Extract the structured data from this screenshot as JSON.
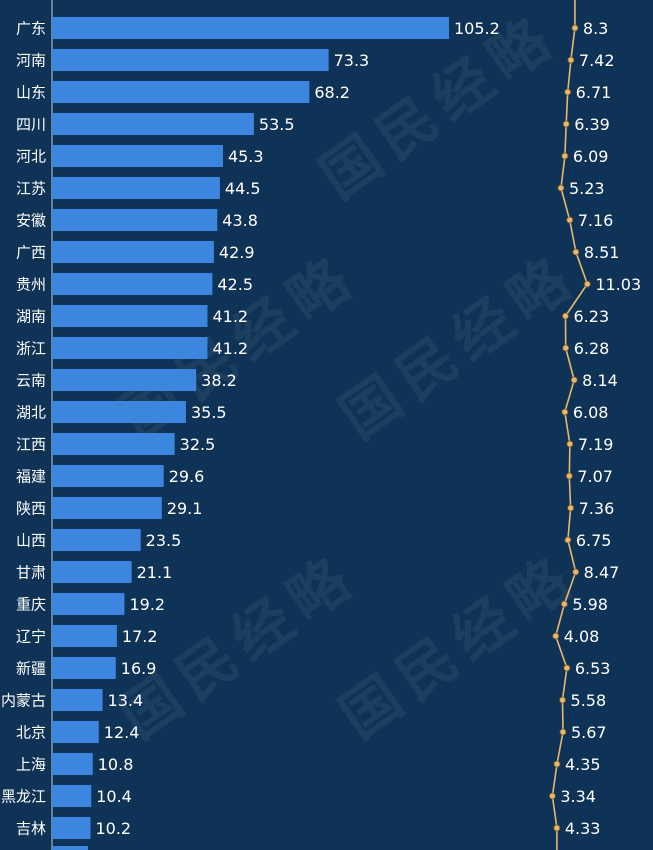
{
  "watermark": "国民经略",
  "colors": {
    "background": "#0f3356",
    "bar": "#3c86e0",
    "line": "#e8b86d",
    "text": "#ffffff",
    "axis": "#c8d2dc"
  },
  "chart_data": {
    "type": "bar",
    "categories": [
      "广东",
      "河南",
      "山东",
      "四川",
      "河北",
      "江苏",
      "安徽",
      "广西",
      "贵州",
      "湖南",
      "浙江",
      "云南",
      "湖北",
      "江西",
      "福建",
      "陕西",
      "山西",
      "甘肃",
      "重庆",
      "辽宁",
      "新疆",
      "内蒙古",
      "北京",
      "上海",
      "黑龙江",
      "吉林"
    ],
    "series": [
      {
        "type": "bar",
        "values": [
          105.2,
          73.3,
          68.2,
          53.5,
          45.3,
          44.5,
          43.8,
          42.9,
          42.5,
          41.2,
          41.2,
          38.2,
          35.5,
          32.5,
          29.6,
          29.1,
          23.5,
          21.1,
          19.2,
          17.2,
          16.9,
          13.4,
          12.4,
          10.8,
          10.4,
          10.2
        ]
      },
      {
        "type": "line",
        "values": [
          8.3,
          7.42,
          6.71,
          6.39,
          6.09,
          5.23,
          7.16,
          8.51,
          11.03,
          6.23,
          6.28,
          8.14,
          6.08,
          7.19,
          7.07,
          7.36,
          6.75,
          8.47,
          5.98,
          4.08,
          6.53,
          5.58,
          5.67,
          4.35,
          3.34,
          4.33
        ]
      }
    ],
    "title": "",
    "xlabel": "",
    "ylabel": "",
    "grid": false
  }
}
